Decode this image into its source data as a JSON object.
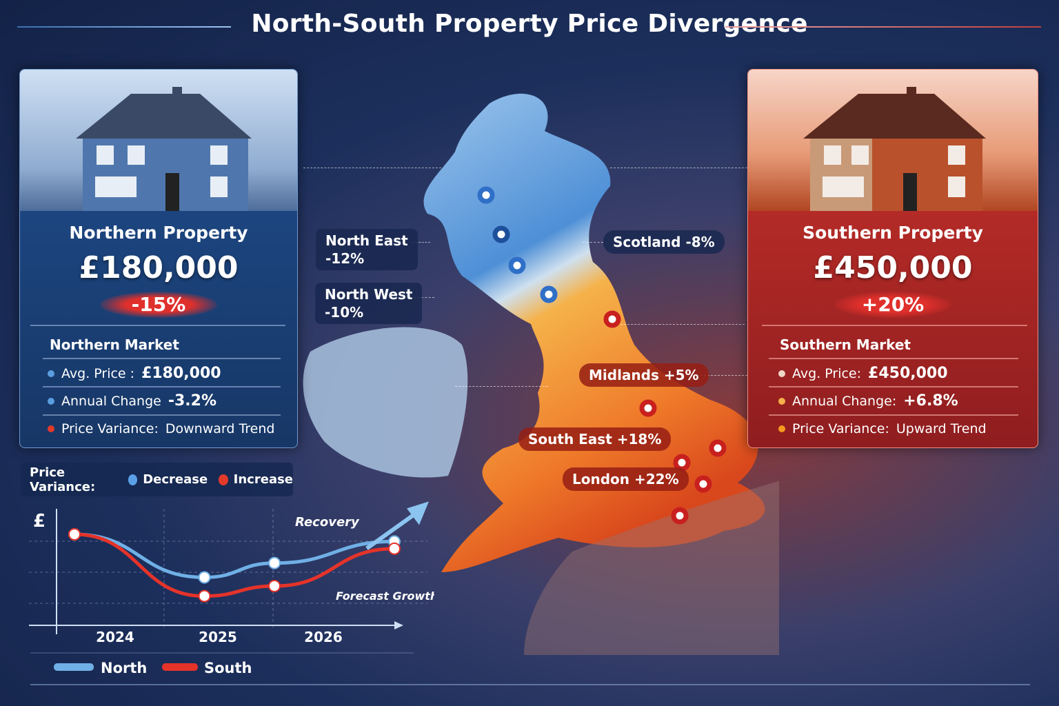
{
  "title": "North-South Property Price Divergence",
  "colors": {
    "north": "#6fb0e6",
    "south": "#e5332a",
    "north_card": "#1f4d8e",
    "south_card": "#c9332c"
  },
  "north_card": {
    "title": "Northern Property",
    "price": "£180,000",
    "change": "-15%",
    "section": "Northern Market",
    "rows": [
      {
        "label": "Avg. Price :",
        "value": "£180,000",
        "dot": "#5a9ee0"
      },
      {
        "label": "Annual Change",
        "value": "-3.2%",
        "dot": "#5a9ee0"
      },
      {
        "label": "Price Variance:",
        "value": "Downward Trend",
        "dot": "#e33a2a"
      }
    ]
  },
  "south_card": {
    "title": "Southern Property",
    "price": "£450,000",
    "change": "+20%",
    "section": "Southern Market",
    "rows": [
      {
        "label": "Avg. Price:",
        "value": "£450,000",
        "dot": "#f0d8c8"
      },
      {
        "label": "Annual Change:",
        "value": "+6.8%",
        "dot": "#f5b04a"
      },
      {
        "label": "Price Variance:",
        "value": "Upward Trend",
        "dot": "#f59a20"
      }
    ]
  },
  "map_labels": [
    {
      "name": "North East",
      "value": "-12%"
    },
    {
      "name": "North West",
      "value": "-10%"
    },
    {
      "name": "Scotland",
      "value": "-8%"
    },
    {
      "name": "Midlands",
      "value": "+5%"
    },
    {
      "name": "South East",
      "value": "+18%"
    },
    {
      "name": "London",
      "value": "+22%"
    }
  ],
  "legend": {
    "label": "Price Variance:",
    "decrease": "Decrease",
    "increase": "Increase"
  },
  "chart_data": {
    "type": "line",
    "ylabel": "£",
    "x_ticks": [
      "2024",
      "2025",
      "2026"
    ],
    "x": [
      2023.6,
      2024.9,
      2025.6,
      2026.8
    ],
    "ylim": [
      0,
      100
    ],
    "series": [
      {
        "name": "North",
        "values": [
          80,
          50,
          60,
          75
        ]
      },
      {
        "name": "South",
        "values": [
          80,
          37,
          44,
          70
        ]
      }
    ],
    "annotations": [
      "Recovery",
      "Forecast Growth"
    ],
    "legend_placement": "bottom"
  }
}
